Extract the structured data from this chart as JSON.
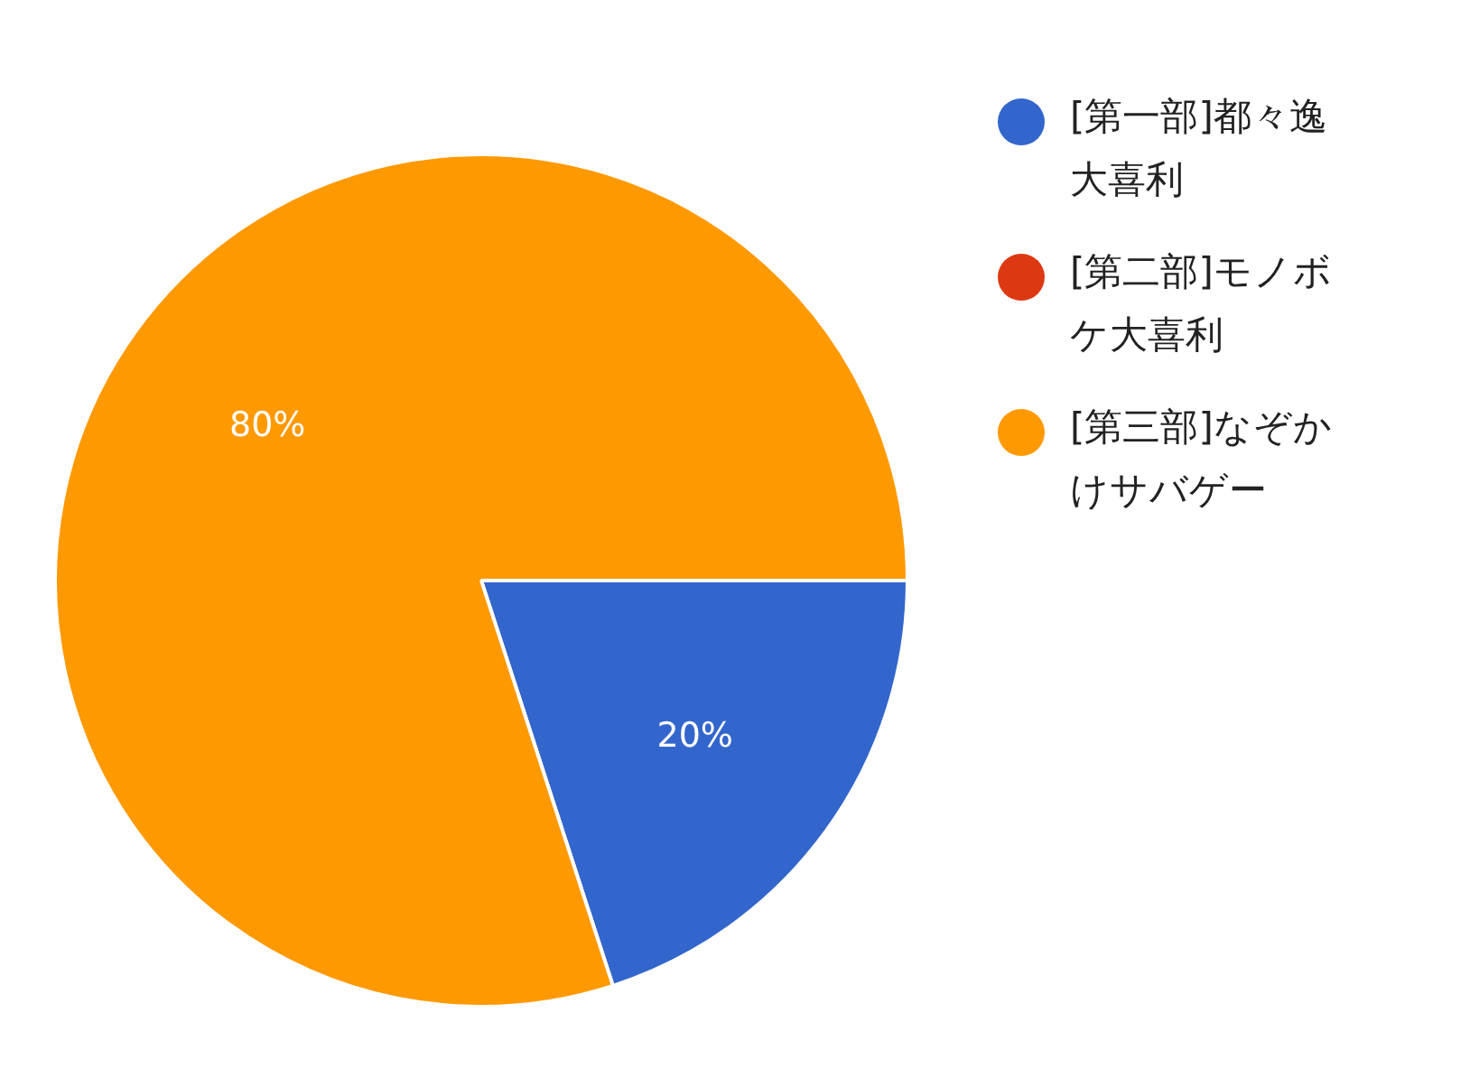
{
  "chart_data": {
    "type": "pie",
    "categories": [
      "[第一部]都々逸大喜利",
      "[第二部]モノボケ大喜利",
      "[第三部]なぞかけサバゲー"
    ],
    "values": [
      20,
      0,
      80
    ],
    "colors": [
      "#3366cc",
      "#dc3912",
      "#ff9900"
    ],
    "value_labels": [
      "20%",
      null,
      "80%"
    ],
    "legend": "right"
  }
}
